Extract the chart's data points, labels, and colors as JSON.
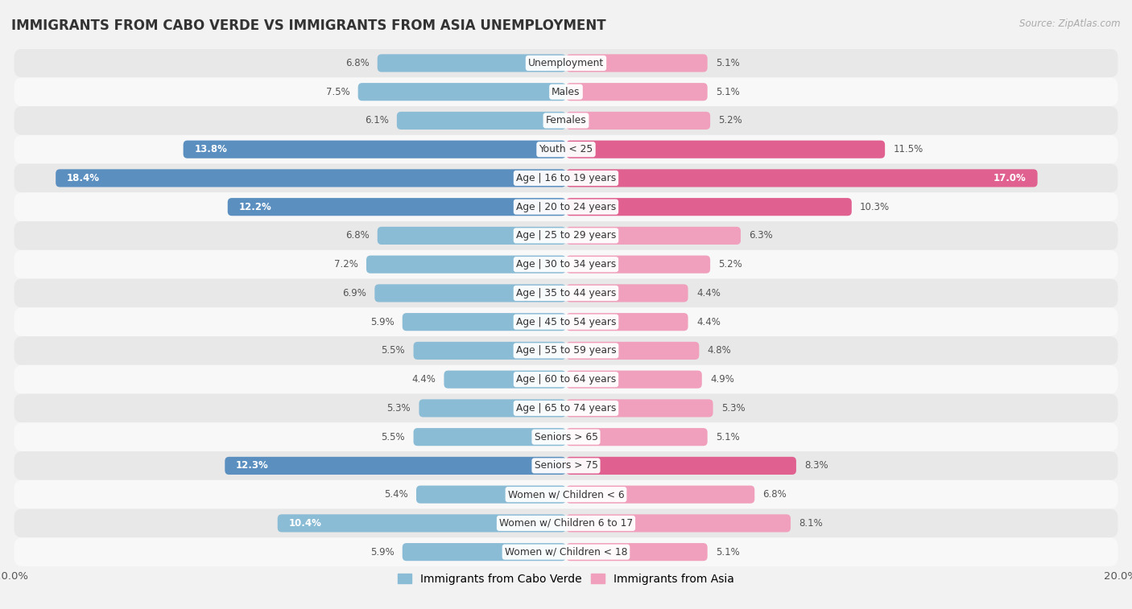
{
  "title": "IMMIGRANTS FROM CABO VERDE VS IMMIGRANTS FROM ASIA UNEMPLOYMENT",
  "source": "Source: ZipAtlas.com",
  "categories": [
    "Unemployment",
    "Males",
    "Females",
    "Youth < 25",
    "Age | 16 to 19 years",
    "Age | 20 to 24 years",
    "Age | 25 to 29 years",
    "Age | 30 to 34 years",
    "Age | 35 to 44 years",
    "Age | 45 to 54 years",
    "Age | 55 to 59 years",
    "Age | 60 to 64 years",
    "Age | 65 to 74 years",
    "Seniors > 65",
    "Seniors > 75",
    "Women w/ Children < 6",
    "Women w/ Children 6 to 17",
    "Women w/ Children < 18"
  ],
  "cabo_verde": [
    6.8,
    7.5,
    6.1,
    13.8,
    18.4,
    12.2,
    6.8,
    7.2,
    6.9,
    5.9,
    5.5,
    4.4,
    5.3,
    5.5,
    12.3,
    5.4,
    10.4,
    5.9
  ],
  "asia": [
    5.1,
    5.1,
    5.2,
    11.5,
    17.0,
    10.3,
    6.3,
    5.2,
    4.4,
    4.4,
    4.8,
    4.9,
    5.3,
    5.1,
    8.3,
    6.8,
    8.1,
    5.1
  ],
  "cabo_verde_color": "#8bbcd6",
  "asia_color": "#f0a0bc",
  "cabo_verde_highlight_color": "#5a8fc0",
  "asia_highlight_color": "#e06090",
  "highlight_rows": [
    3,
    4,
    5,
    14
  ],
  "bar_height": 0.62,
  "xlim": 20.0,
  "bg_color": "#f2f2f2",
  "row_bg_even": "#e8e8e8",
  "row_bg_odd": "#f8f8f8",
  "legend_label_cv": "Immigrants from Cabo Verde",
  "legend_label_asia": "Immigrants from Asia"
}
